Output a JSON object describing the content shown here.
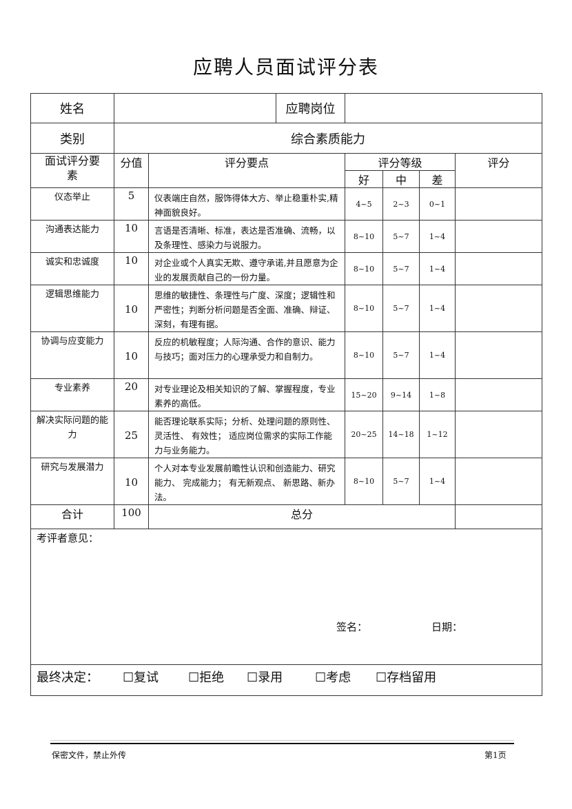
{
  "title": "应聘人员面试评分表",
  "top": {
    "name_label": "姓名",
    "position_label": "应聘岗位",
    "category_label": "类别",
    "category_value": "综合素质能力"
  },
  "header": {
    "element": "面试评分要素",
    "points": "分值",
    "key": "评分要点",
    "grade": "评分等级",
    "good": "好",
    "mid": "中",
    "poor": "差",
    "score": "评分"
  },
  "rows": [
    {
      "element": "仪态举止",
      "points": "5",
      "key": "仪表端庄自然，服饰得体大方、举止稳重朴实,精神面貌良好。",
      "good": "4~5",
      "mid": "2~3",
      "poor": "0~1"
    },
    {
      "element": "沟通表达能力",
      "points": "10",
      "key": "言语是否清晰、标准，表达是否准确、流畅，以及条理性、感染力与说服力。",
      "good": "8~10",
      "mid": "5~7",
      "poor": "1~4"
    },
    {
      "element": "诚实和忠诚度",
      "points": "10",
      "key": "对企业或个人真实无欺、遵守承诺,并且愿意为企业的发展贡献自己的一份力量。",
      "good": "8~10",
      "mid": "5~7",
      "poor": "1~4"
    },
    {
      "element": "逻辑思维能力",
      "points": "10",
      "key": "思维的敏捷性、条理性与广度、深度；逻辑性和严密性；判断分析问题是否全面、准确、辩证、深刻，有理有据。",
      "good": "8~10",
      "mid": "5~7",
      "poor": "1~4"
    },
    {
      "element": "协调与应变能力",
      "points": "10",
      "key": "反应的机敏程度；人际沟通、合作的意识、能力与技巧；面对压力的心理承受力和自制力。",
      "good": "8~10",
      "mid": "5~7",
      "poor": "1~4"
    },
    {
      "element": "专业素养",
      "points": "20",
      "key": "对专业理论及相关知识的了解、掌握程度，专业素养的高低。",
      "good": "15~20",
      "mid": "9~14",
      "poor": "1~8"
    },
    {
      "element": "解决实际问题的能力",
      "points": "25",
      "key": "能否理论联系实际；分析、处理问题的原则性、 灵活性、 有效性； 适应岗位需求的实际工作能力与业务能力。",
      "good": "20~25",
      "mid": "14~18",
      "poor": "1~12"
    },
    {
      "element": "研究与发展潜力",
      "points": "10",
      "key": "个人对本专业发展前瞻性认识和创造能力、研究能力、 完成能力； 有无新观点、 新思路、新办法。",
      "good": "8~10",
      "mid": "5~7",
      "poor": "1~4"
    }
  ],
  "total": {
    "label": "合计",
    "points": "100",
    "sum_label": "总分"
  },
  "comments": {
    "label": "考评者意见：",
    "sign": "签名：",
    "date": "日期："
  },
  "final": {
    "label": "最终决定：",
    "options": [
      "复试",
      "拒绝",
      "录用",
      "考虑",
      "存档留用"
    ]
  },
  "footer": {
    "left": "保密文件，禁止外传",
    "right": "第1页"
  }
}
